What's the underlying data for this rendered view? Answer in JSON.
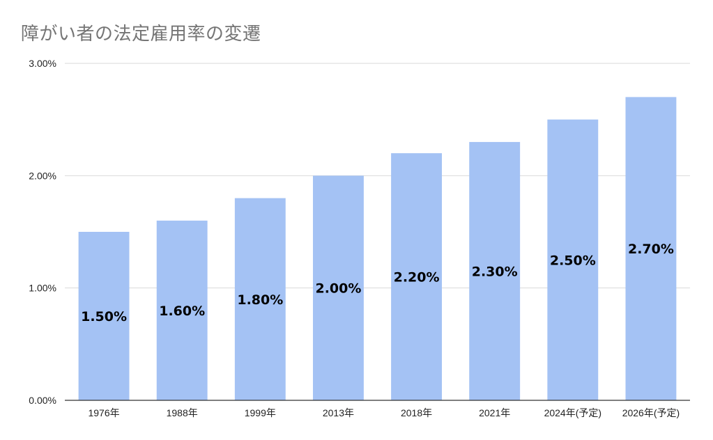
{
  "chart_data": {
    "type": "bar",
    "title": "障がい者の法定雇用率の変遷",
    "categories": [
      "1976年",
      "1988年",
      "1999年",
      "2013年",
      "2018年",
      "2021年",
      "2024年(予定)",
      "2026年(予定)"
    ],
    "values": [
      1.5,
      1.6,
      1.8,
      2.0,
      2.2,
      2.3,
      2.5,
      2.7
    ],
    "data_labels": [
      "1.50%",
      "1.60%",
      "1.80%",
      "2.00%",
      "2.20%",
      "2.30%",
      "2.50%",
      "2.70%"
    ],
    "yticks": [
      0,
      1,
      2,
      3
    ],
    "ytick_labels": [
      "0.00%",
      "1.00%",
      "2.00%",
      "3.00%"
    ],
    "ylim": [
      0,
      3
    ],
    "xlabel": "",
    "ylabel": "",
    "grid": true,
    "bar_color": "#a4c2f4",
    "grid_color": "#d9d9d9",
    "axis_color": "#333333",
    "title_color": "#757575"
  }
}
